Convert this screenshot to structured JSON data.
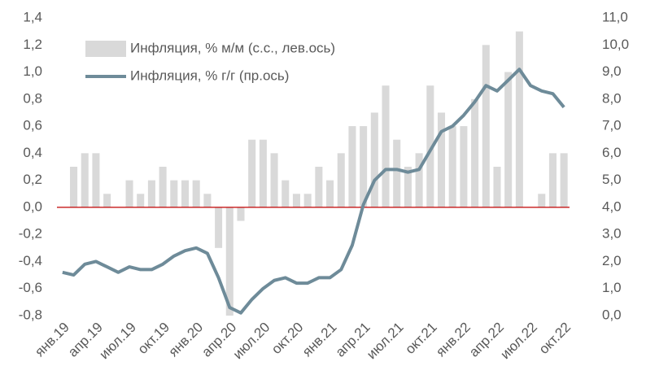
{
  "chart_data": {
    "type": "bar_line",
    "categories": [
      "янв.19",
      null,
      null,
      "апр.19",
      null,
      null,
      "июл.19",
      null,
      null,
      "окт.19",
      null,
      null,
      "янв.20",
      null,
      null,
      "апр.20",
      null,
      null,
      "июл.20",
      null,
      null,
      "окт.20",
      null,
      null,
      "янв.21",
      null,
      null,
      "апр.21",
      null,
      null,
      "июл.21",
      null,
      null,
      "окт.21",
      null,
      null,
      "янв.22",
      null,
      null,
      "апр.22",
      null,
      null,
      "июл.22",
      null,
      null,
      "окт.22"
    ],
    "series": [
      {
        "name": "Инфляция, % м/м (с.с., лев.ось)",
        "type": "bar",
        "color": "#d9d9d9",
        "values": [
          null,
          0.3,
          0.4,
          0.4,
          0.1,
          0,
          0.2,
          0.1,
          0.2,
          0.3,
          0.2,
          0.2,
          0.2,
          0.1,
          -0.3,
          -0.8,
          -0.1,
          0.5,
          0.5,
          0.4,
          0.2,
          0.1,
          0.1,
          0.3,
          0.2,
          0.4,
          0.6,
          0.6,
          0.7,
          0.9,
          0.5,
          0.3,
          0.4,
          0.9,
          0.7,
          0.6,
          0.6,
          0.8,
          1.2,
          0.3,
          1.0,
          1.3,
          0,
          0.1,
          0.4,
          0.4
        ]
      },
      {
        "name": "Инфляция, % г/г (пр.ось)",
        "type": "line",
        "axis": "y2",
        "color": "#6e8b99",
        "values": [
          1.6,
          1.5,
          1.9,
          2.0,
          1.8,
          1.6,
          1.8,
          1.7,
          1.7,
          1.9,
          2.2,
          2.4,
          2.5,
          2.3,
          1.4,
          0.3,
          0.1,
          0.6,
          1.0,
          1.3,
          1.4,
          1.2,
          1.2,
          1.4,
          1.4,
          1.7,
          2.6,
          4.1,
          5.0,
          5.4,
          5.4,
          5.3,
          5.4,
          6.1,
          6.8,
          7.0,
          7.4,
          7.9,
          8.5,
          8.3,
          8.7,
          9.1,
          8.5,
          8.3,
          8.2,
          7.7
        ]
      }
    ],
    "ylim": [
      -0.8,
      1.4
    ],
    "yticks": [
      {
        "value": -0.8,
        "label": "-0,8"
      },
      {
        "value": -0.6,
        "label": "-0,6"
      },
      {
        "value": -0.4,
        "label": "-0,4"
      },
      {
        "value": -0.2,
        "label": "-0,2"
      },
      {
        "value": 0,
        "label": "0,0"
      },
      {
        "value": 0.2,
        "label": "0,2"
      },
      {
        "value": 0.4,
        "label": "0,4"
      },
      {
        "value": 0.6,
        "label": "0,6"
      },
      {
        "value": 0.8,
        "label": "0,8"
      },
      {
        "value": 1.0,
        "label": "1,0"
      },
      {
        "value": 1.2,
        "label": "1,2"
      },
      {
        "value": 1.4,
        "label": "1,4"
      }
    ],
    "y2lim": [
      0,
      11
    ],
    "y2ticks": [
      {
        "value": 0,
        "label": "0,0"
      },
      {
        "value": 1,
        "label": "1,0"
      },
      {
        "value": 2,
        "label": "2,0"
      },
      {
        "value": 3,
        "label": "3,0"
      },
      {
        "value": 4,
        "label": "4,0"
      },
      {
        "value": 5,
        "label": "5,0"
      },
      {
        "value": 6,
        "label": "6,0"
      },
      {
        "value": 7,
        "label": "7,0"
      },
      {
        "value": 8,
        "label": "8,0"
      },
      {
        "value": 9,
        "label": "9,0"
      },
      {
        "value": 10,
        "label": "10,0"
      },
      {
        "value": 11,
        "label": "11,0"
      }
    ],
    "legend": "top-left"
  }
}
